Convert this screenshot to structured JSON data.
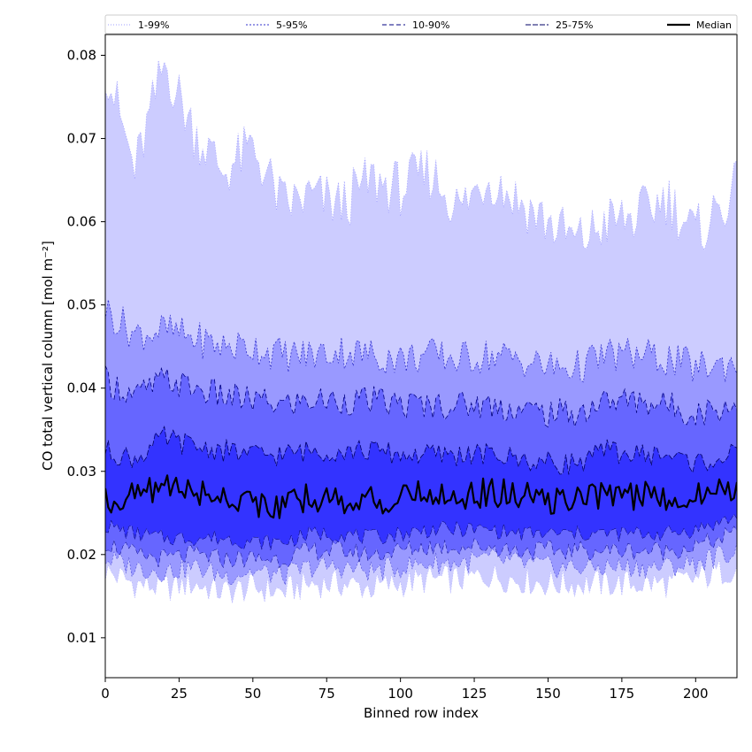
{
  "chart_data": {
    "type": "area",
    "xlabel": "Binned row index",
    "ylabel": "CO total vertical column [mol m⁻²]",
    "xlim": [
      0,
      214
    ],
    "ylim": [
      0.0052,
      0.0825
    ],
    "xticks": [
      0,
      25,
      50,
      75,
      100,
      125,
      150,
      175,
      200
    ],
    "yticks": [
      0.01,
      0.02,
      0.03,
      0.04,
      0.05,
      0.06,
      0.07,
      0.08
    ],
    "ytick_labels": [
      "0.01",
      "0.02",
      "0.03",
      "0.04",
      "0.05",
      "0.06",
      "0.07",
      "0.08"
    ],
    "legend_position": "top",
    "x_anchors": [
      0,
      10,
      20,
      30,
      40,
      50,
      60,
      70,
      80,
      90,
      100,
      110,
      120,
      130,
      140,
      150,
      160,
      170,
      180,
      190,
      200,
      214
    ],
    "bands": [
      {
        "name": "1-99%",
        "color": "#ccccff",
        "edge_color": "#9d9dff",
        "dash": "1,2",
        "lower": [
          0.018,
          0.0165,
          0.016,
          0.0165,
          0.0155,
          0.016,
          0.0155,
          0.0165,
          0.0165,
          0.016,
          0.0165,
          0.017,
          0.017,
          0.0175,
          0.017,
          0.0165,
          0.0165,
          0.0165,
          0.0165,
          0.0165,
          0.017,
          0.0185
        ],
        "upper": [
          0.079,
          0.066,
          0.079,
          0.071,
          0.066,
          0.069,
          0.062,
          0.063,
          0.062,
          0.065,
          0.064,
          0.066,
          0.0615,
          0.0655,
          0.0625,
          0.06,
          0.0575,
          0.06,
          0.0605,
          0.063,
          0.0585,
          0.064
        ]
      },
      {
        "name": "5-95%",
        "color": "#9999ff",
        "edge_color": "#3333cc",
        "dash": "2,2",
        "lower": [
          0.0195,
          0.0185,
          0.018,
          0.0185,
          0.0175,
          0.018,
          0.0175,
          0.0185,
          0.0185,
          0.018,
          0.0185,
          0.019,
          0.019,
          0.0195,
          0.019,
          0.0185,
          0.0185,
          0.0185,
          0.0185,
          0.0185,
          0.019,
          0.0205
        ],
        "upper": [
          0.0495,
          0.0465,
          0.047,
          0.046,
          0.045,
          0.045,
          0.044,
          0.044,
          0.0445,
          0.044,
          0.0435,
          0.044,
          0.0435,
          0.044,
          0.0435,
          0.0425,
          0.0425,
          0.044,
          0.044,
          0.0435,
          0.0425,
          0.043
        ]
      },
      {
        "name": "10-90%",
        "color": "#6666ff",
        "edge_color": "#000080",
        "dash": "5,3",
        "lower": [
          0.0215,
          0.02,
          0.0195,
          0.02,
          0.0195,
          0.0195,
          0.0195,
          0.0205,
          0.0205,
          0.02,
          0.0205,
          0.021,
          0.021,
          0.021,
          0.0205,
          0.0205,
          0.0205,
          0.0205,
          0.0205,
          0.0205,
          0.021,
          0.0225
        ],
        "upper": [
          0.041,
          0.039,
          0.041,
          0.04,
          0.039,
          0.0385,
          0.038,
          0.0385,
          0.0385,
          0.0385,
          0.038,
          0.038,
          0.038,
          0.038,
          0.0375,
          0.037,
          0.037,
          0.0385,
          0.0385,
          0.038,
          0.037,
          0.038
        ]
      },
      {
        "name": "25-75%",
        "color": "#3333ff",
        "edge_color": "#000066",
        "dash": "6,2",
        "lower": [
          0.0235,
          0.0225,
          0.022,
          0.022,
          0.022,
          0.0215,
          0.0215,
          0.0225,
          0.0225,
          0.022,
          0.0225,
          0.023,
          0.023,
          0.023,
          0.0225,
          0.0225,
          0.0225,
          0.0225,
          0.0225,
          0.0225,
          0.023,
          0.0245
        ],
        "upper": [
          0.0325,
          0.0315,
          0.034,
          0.033,
          0.0325,
          0.032,
          0.032,
          0.0325,
          0.0325,
          0.0325,
          0.032,
          0.032,
          0.032,
          0.032,
          0.0315,
          0.031,
          0.031,
          0.0325,
          0.032,
          0.032,
          0.031,
          0.032
        ]
      }
    ],
    "median": {
      "name": "Median",
      "color": "#000000",
      "values": [
        0.0265,
        0.027,
        0.0285,
        0.0275,
        0.027,
        0.0265,
        0.0255,
        0.027,
        0.0265,
        0.0265,
        0.0265,
        0.0275,
        0.027,
        0.0275,
        0.027,
        0.0265,
        0.0265,
        0.0275,
        0.027,
        0.027,
        0.027,
        0.0282
      ]
    }
  }
}
